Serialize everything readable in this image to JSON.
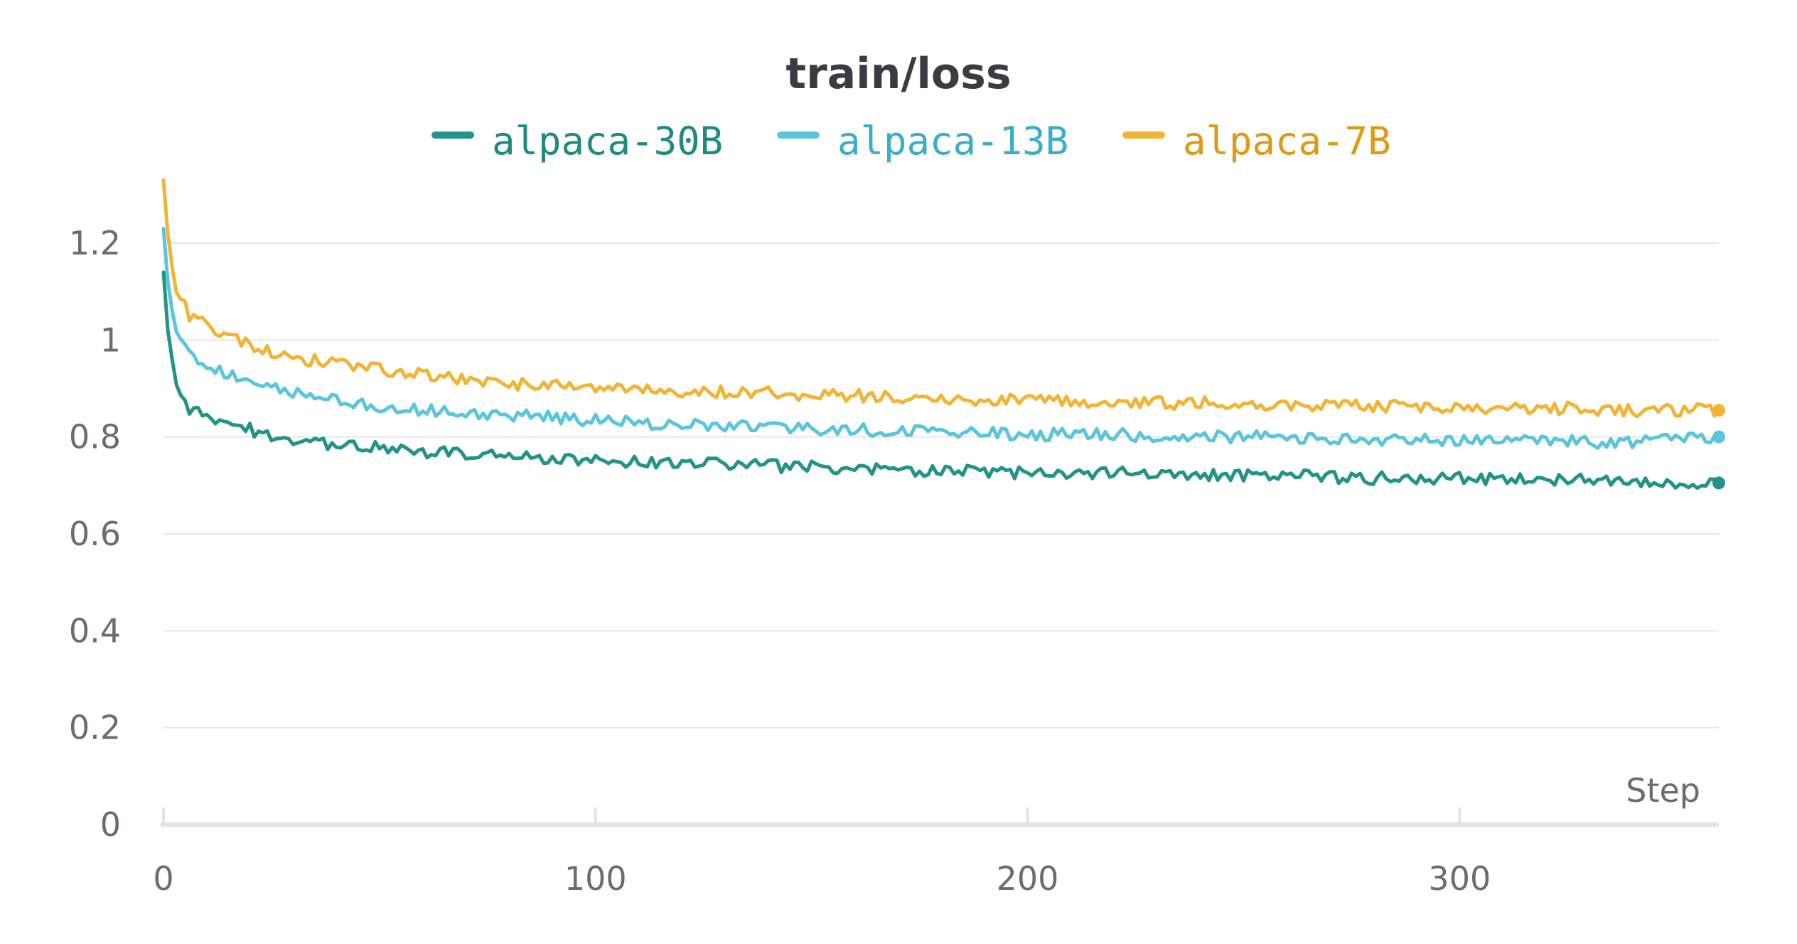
{
  "chart_data": {
    "type": "line",
    "title": "train/loss",
    "xlabel": "Step",
    "ylabel": "",
    "xlim": [
      0,
      360
    ],
    "ylim": [
      0,
      1.3
    ],
    "x_ticks": [
      0,
      100,
      200,
      300
    ],
    "y_ticks": [
      0,
      0.2,
      0.4,
      0.6,
      0.8,
      1,
      1.2
    ],
    "x_tick_labels": [
      "0",
      "100",
      "200",
      "300"
    ],
    "y_tick_labels": [
      "0",
      "0.2",
      "0.4",
      "0.6",
      "0.8",
      "1",
      "1.2"
    ],
    "grid": true,
    "legend_position": "top-center",
    "series": [
      {
        "name": "alpaca-30B",
        "color": "#229487",
        "text_color": "#1f8a7f",
        "x": [
          0,
          1,
          2,
          3,
          4,
          5,
          6,
          8,
          10,
          12,
          15,
          20,
          25,
          30,
          40,
          50,
          60,
          70,
          80,
          90,
          100,
          120,
          140,
          160,
          180,
          200,
          220,
          240,
          260,
          280,
          300,
          320,
          340,
          360
        ],
        "y": [
          1.14,
          1.02,
          0.96,
          0.92,
          0.89,
          0.87,
          0.86,
          0.855,
          0.85,
          0.84,
          0.83,
          0.815,
          0.805,
          0.795,
          0.785,
          0.78,
          0.77,
          0.765,
          0.76,
          0.755,
          0.75,
          0.745,
          0.74,
          0.735,
          0.73,
          0.725,
          0.725,
          0.72,
          0.72,
          0.715,
          0.715,
          0.71,
          0.71,
          0.705
        ]
      },
      {
        "name": "alpaca-13B",
        "color": "#5bc5dc",
        "text_color": "#3aadcb",
        "x": [
          0,
          1,
          2,
          3,
          4,
          5,
          6,
          8,
          10,
          12,
          15,
          20,
          25,
          30,
          40,
          50,
          60,
          70,
          80,
          90,
          100,
          120,
          140,
          160,
          180,
          200,
          220,
          240,
          260,
          280,
          300,
          320,
          340,
          360
        ],
        "y": [
          1.23,
          1.12,
          1.06,
          1.02,
          1.0,
          0.98,
          0.97,
          0.955,
          0.95,
          0.94,
          0.93,
          0.915,
          0.905,
          0.89,
          0.875,
          0.865,
          0.855,
          0.85,
          0.845,
          0.84,
          0.835,
          0.825,
          0.82,
          0.815,
          0.81,
          0.805,
          0.805,
          0.8,
          0.8,
          0.795,
          0.795,
          0.79,
          0.79,
          0.8
        ]
      },
      {
        "name": "alpaca-7B",
        "color": "#f0b534",
        "text_color": "#dd9a12",
        "x": [
          0,
          1,
          2,
          3,
          4,
          5,
          6,
          8,
          10,
          12,
          15,
          20,
          25,
          30,
          40,
          50,
          60,
          70,
          80,
          90,
          100,
          120,
          140,
          160,
          180,
          200,
          220,
          240,
          260,
          280,
          300,
          320,
          340,
          360
        ],
        "y": [
          1.33,
          1.22,
          1.15,
          1.1,
          1.08,
          1.07,
          1.05,
          1.04,
          1.03,
          1.02,
          1.01,
          0.99,
          0.975,
          0.965,
          0.95,
          0.94,
          0.93,
          0.92,
          0.91,
          0.905,
          0.9,
          0.895,
          0.89,
          0.885,
          0.88,
          0.875,
          0.87,
          0.87,
          0.865,
          0.865,
          0.86,
          0.86,
          0.855,
          0.855
        ]
      }
    ]
  }
}
